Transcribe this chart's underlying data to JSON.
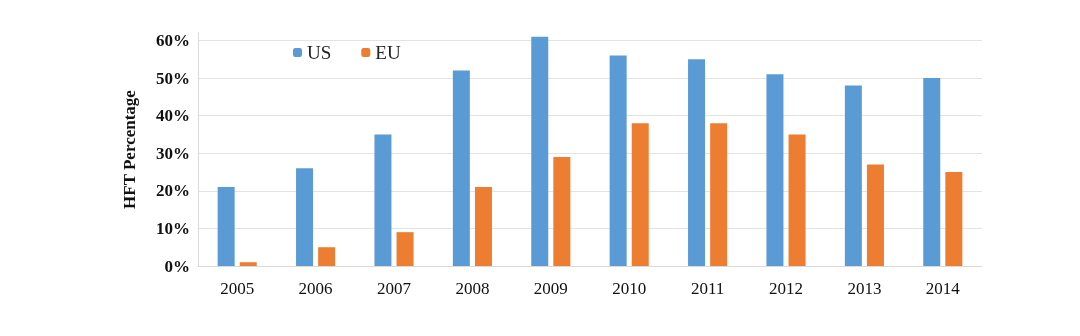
{
  "chart_data": {
    "type": "bar",
    "ylabel": "HFT Percentage",
    "categories": [
      "2005",
      "2006",
      "2007",
      "2008",
      "2009",
      "2010",
      "2011",
      "2012",
      "2013",
      "2014"
    ],
    "series": [
      {
        "name": "US",
        "color": "#5b9bd5",
        "values": [
          21,
          26,
          35,
          52,
          61,
          56,
          55,
          51,
          48,
          50
        ]
      },
      {
        "name": "EU",
        "color": "#ed7d31",
        "values": [
          1,
          5,
          9,
          21,
          29,
          38,
          38,
          35,
          27,
          25
        ]
      }
    ],
    "ylim": [
      0,
      62
    ],
    "yticks": [
      {
        "value": 0,
        "label": "0%"
      },
      {
        "value": 10,
        "label": "10%"
      },
      {
        "value": 20,
        "label": "20%"
      },
      {
        "value": 30,
        "label": "30%"
      },
      {
        "value": 40,
        "label": "40%"
      },
      {
        "value": 50,
        "label": "50%"
      },
      {
        "value": 60,
        "label": "60%"
      }
    ],
    "grid": "y",
    "legend": "top left"
  }
}
